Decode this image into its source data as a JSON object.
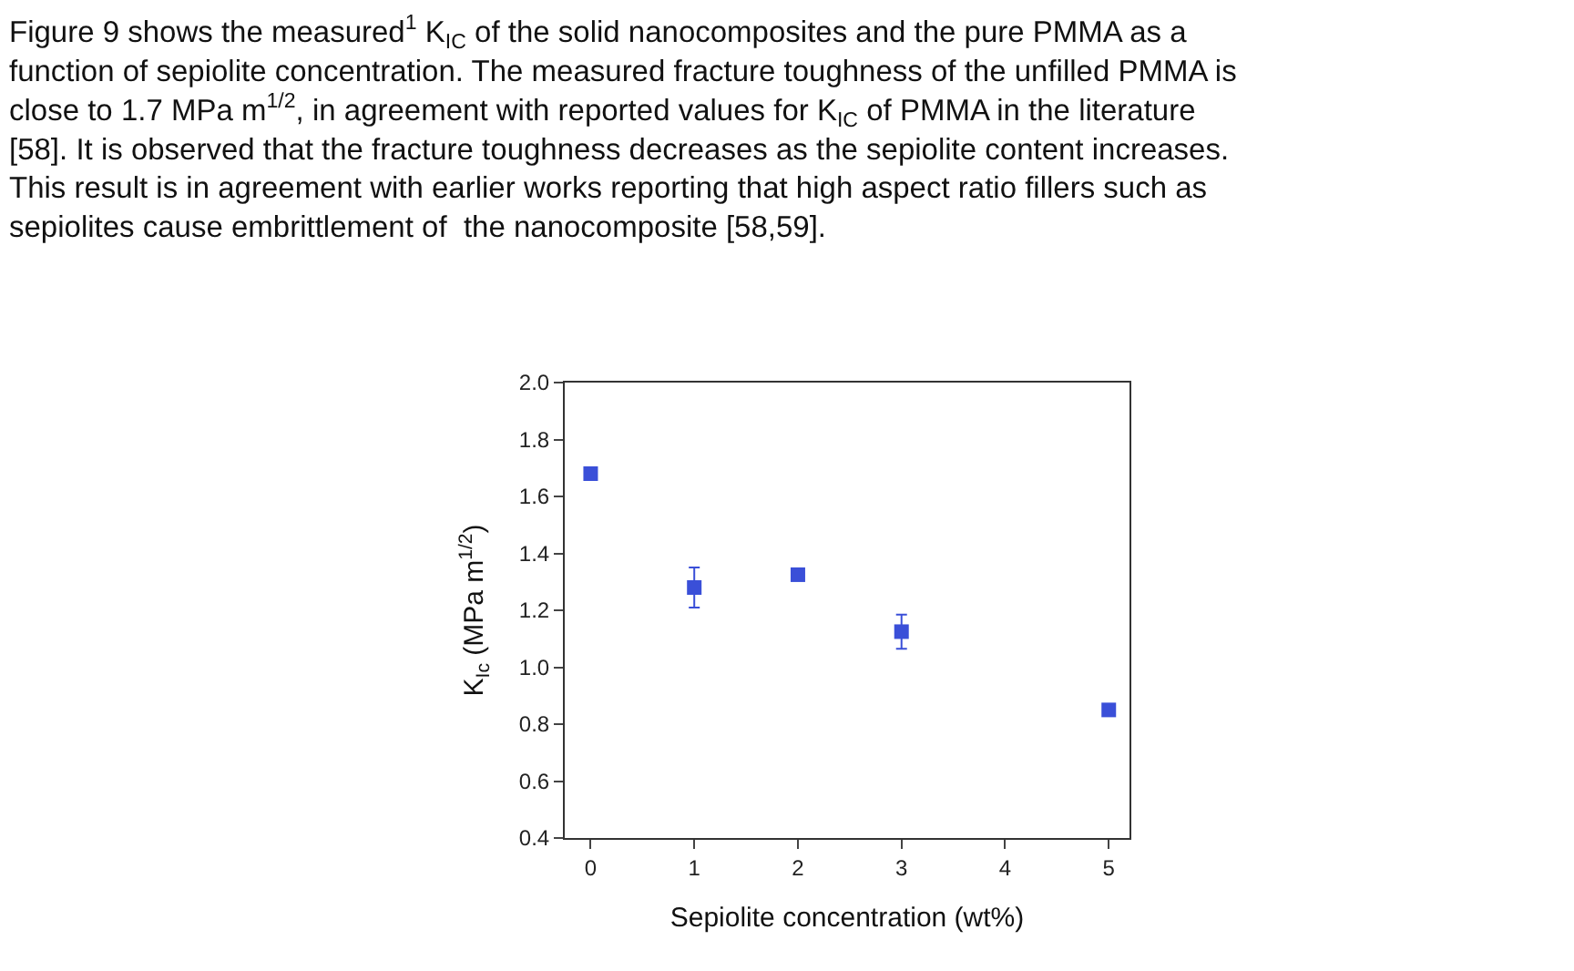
{
  "chart_data": {
    "type": "scatter",
    "annotations": [
      "Figure 9 shows the measured$^{1}$ K$_{IC}$ of the solid nanocomposites and the pure PMMA as a\nfunction of sepiolite concentration. The measured fracture toughness of the unfilled PMMA is\nclose to 1.7 MPa m$^{1/2}$, in agreement with reported values for K$_{IC}$ of PMMA in the literature\n[58]. It is observed that the fracture toughness decreases as the sepiolite content increases.\nThis result is in agreement with earlier works reporting that high aspect ratio fillers such as\nsepiolites cause embrittlement of  the nanocomposite [58,59]."
    ],
    "xlabel": "Sepiolite concentration (wt%)",
    "ylabel": "K$_{Ic}$ (MPa m$^{1/2}$)",
    "x": [
      0,
      1,
      2,
      3,
      5
    ],
    "series": [
      {
        "color": "#3a4fd8",
        "values": [
          1.68,
          1.28,
          1.325,
          1.125,
          0.85
        ],
        "errors": [
          null,
          0.07,
          null,
          0.06,
          null
        ]
      }
    ],
    "xlim": [
      -0.25,
      5.2
    ],
    "xticks": [
      0,
      1,
      2,
      3,
      4,
      5
    ],
    "ylim": [
      0.4,
      2.0
    ],
    "yticks": [
      0.4,
      0.6,
      0.8,
      {
        "value": 1,
        "label": "1.0"
      },
      1.2,
      1.4,
      1.6,
      1.8,
      {
        "value": 2,
        "label": "2.0"
      }
    ],
    "marker": "square"
  }
}
